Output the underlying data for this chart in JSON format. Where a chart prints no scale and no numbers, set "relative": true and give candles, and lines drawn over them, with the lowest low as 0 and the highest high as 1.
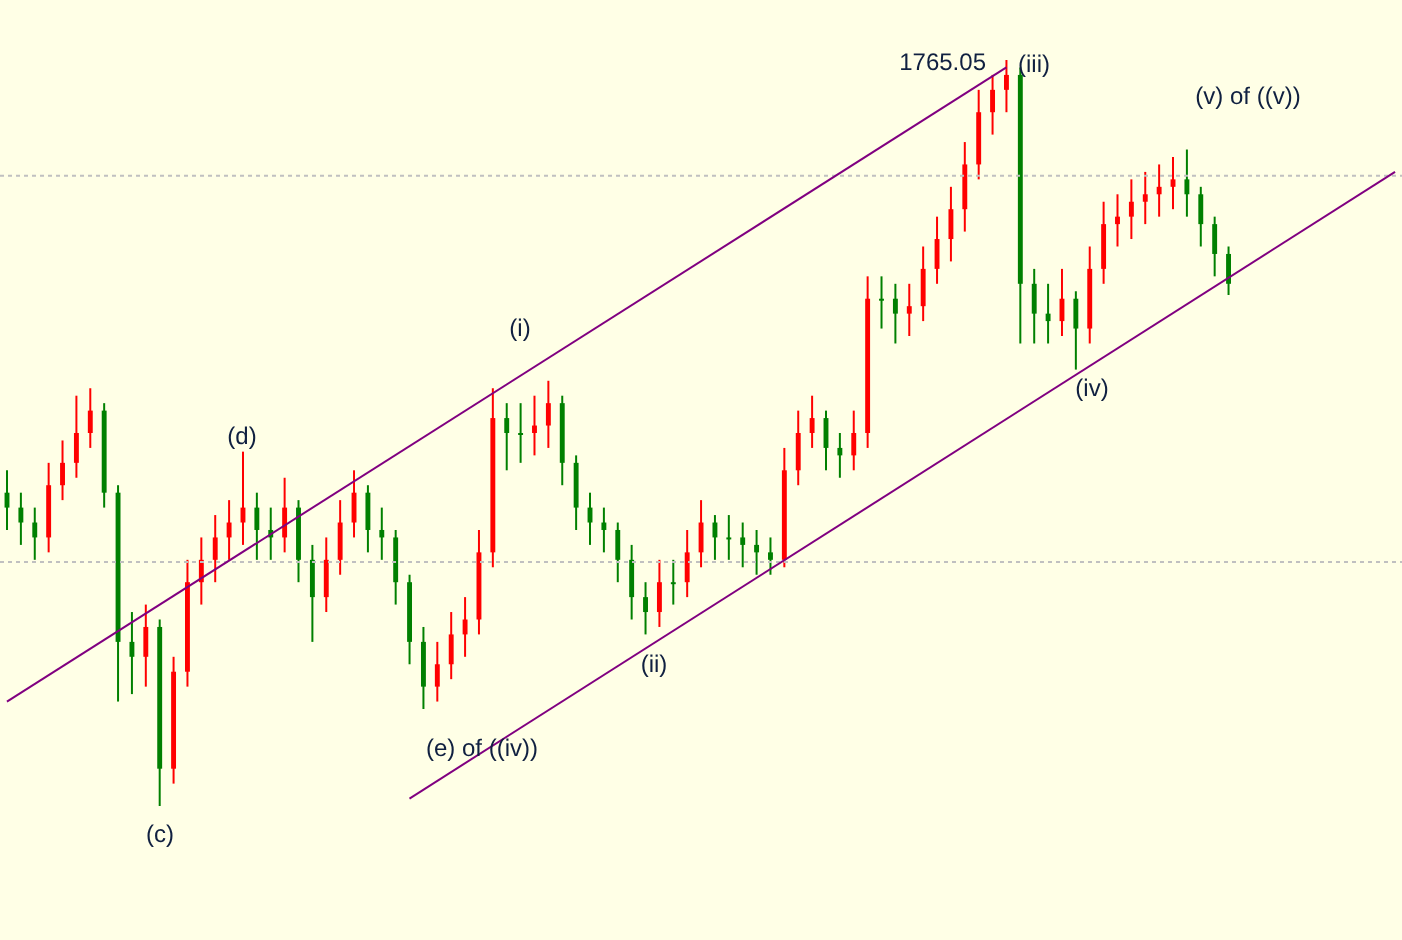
{
  "chart_data": {
    "type": "candlestick",
    "relative": true,
    "categories": [
      null,
      null,
      null,
      null,
      null,
      null,
      null,
      null,
      null,
      null,
      null,
      null,
      null,
      null,
      null,
      null,
      null,
      null,
      null,
      null,
      null,
      null,
      null,
      null,
      null,
      null,
      null,
      null,
      null,
      null,
      null,
      null,
      null,
      null,
      null,
      null,
      null,
      null,
      null,
      null,
      null,
      null,
      null,
      null,
      null,
      null,
      null,
      null,
      null,
      null,
      null,
      null,
      null,
      null,
      null,
      null,
      null,
      null,
      null,
      null,
      null,
      null,
      null,
      null,
      null,
      null,
      null,
      null,
      null,
      null,
      null,
      null,
      null,
      null,
      null,
      null,
      null,
      null,
      null,
      null,
      null,
      null,
      null,
      null,
      null,
      null,
      null,
      null,
      null,
      null,
      null,
      null,
      null,
      null,
      null,
      null,
      null,
      null,
      null,
      null,
      null
    ],
    "ohlc": [
      [
        0.42,
        0.45,
        0.37,
        0.4
      ],
      [
        0.4,
        0.42,
        0.35,
        0.38
      ],
      [
        0.38,
        0.4,
        0.33,
        0.36
      ],
      [
        0.36,
        0.46,
        0.34,
        0.43
      ],
      [
        0.43,
        0.49,
        0.41,
        0.46
      ],
      [
        0.46,
        0.55,
        0.44,
        0.5
      ],
      [
        0.5,
        0.56,
        0.48,
        0.53
      ],
      [
        0.53,
        0.54,
        0.4,
        0.42
      ],
      [
        0.42,
        0.43,
        0.14,
        0.22
      ],
      [
        0.22,
        0.26,
        0.15,
        0.2
      ],
      [
        0.2,
        0.27,
        0.16,
        0.24
      ],
      [
        0.24,
        0.25,
        0.0,
        0.05
      ],
      [
        0.05,
        0.2,
        0.03,
        0.18
      ],
      [
        0.18,
        0.33,
        0.16,
        0.3
      ],
      [
        0.3,
        0.36,
        0.27,
        0.33
      ],
      [
        0.33,
        0.39,
        0.3,
        0.36
      ],
      [
        0.36,
        0.41,
        0.33,
        0.38
      ],
      [
        0.38,
        0.475,
        0.35,
        0.4
      ],
      [
        0.4,
        0.42,
        0.33,
        0.37
      ],
      [
        0.37,
        0.4,
        0.33,
        0.36
      ],
      [
        0.36,
        0.44,
        0.34,
        0.4
      ],
      [
        0.4,
        0.41,
        0.3,
        0.33
      ],
      [
        0.33,
        0.35,
        0.22,
        0.28
      ],
      [
        0.28,
        0.36,
        0.26,
        0.33
      ],
      [
        0.33,
        0.41,
        0.31,
        0.38
      ],
      [
        0.38,
        0.45,
        0.36,
        0.42
      ],
      [
        0.42,
        0.43,
        0.34,
        0.37
      ],
      [
        0.37,
        0.4,
        0.33,
        0.36
      ],
      [
        0.36,
        0.37,
        0.27,
        0.3
      ],
      [
        0.3,
        0.31,
        0.19,
        0.22
      ],
      [
        0.22,
        0.24,
        0.13,
        0.16
      ],
      [
        0.16,
        0.22,
        0.14,
        0.19
      ],
      [
        0.19,
        0.26,
        0.17,
        0.23
      ],
      [
        0.23,
        0.28,
        0.2,
        0.25
      ],
      [
        0.25,
        0.37,
        0.23,
        0.34
      ],
      [
        0.34,
        0.56,
        0.32,
        0.52
      ],
      [
        0.52,
        0.54,
        0.45,
        0.5
      ],
      [
        0.5,
        0.54,
        0.46,
        0.5
      ],
      [
        0.5,
        0.55,
        0.47,
        0.51
      ],
      [
        0.51,
        0.57,
        0.48,
        0.54
      ],
      [
        0.54,
        0.55,
        0.43,
        0.46
      ],
      [
        0.46,
        0.47,
        0.37,
        0.4
      ],
      [
        0.4,
        0.42,
        0.35,
        0.38
      ],
      [
        0.38,
        0.4,
        0.34,
        0.37
      ],
      [
        0.37,
        0.38,
        0.3,
        0.33
      ],
      [
        0.33,
        0.35,
        0.25,
        0.28
      ],
      [
        0.28,
        0.3,
        0.23,
        0.26
      ],
      [
        0.26,
        0.33,
        0.24,
        0.3
      ],
      [
        0.3,
        0.33,
        0.27,
        0.3
      ],
      [
        0.3,
        0.37,
        0.28,
        0.34
      ],
      [
        0.34,
        0.41,
        0.32,
        0.38
      ],
      [
        0.38,
        0.39,
        0.33,
        0.36
      ],
      [
        0.36,
        0.39,
        0.33,
        0.36
      ],
      [
        0.36,
        0.38,
        0.32,
        0.35
      ],
      [
        0.35,
        0.37,
        0.31,
        0.34
      ],
      [
        0.34,
        0.36,
        0.31,
        0.33
      ],
      [
        0.33,
        0.48,
        0.32,
        0.45
      ],
      [
        0.45,
        0.53,
        0.43,
        0.5
      ],
      [
        0.5,
        0.55,
        0.48,
        0.52
      ],
      [
        0.52,
        0.53,
        0.45,
        0.48
      ],
      [
        0.48,
        0.5,
        0.44,
        0.47
      ],
      [
        0.47,
        0.53,
        0.45,
        0.5
      ],
      [
        0.5,
        0.71,
        0.48,
        0.68
      ],
      [
        0.68,
        0.71,
        0.64,
        0.68
      ],
      [
        0.68,
        0.7,
        0.62,
        0.66
      ],
      [
        0.66,
        0.7,
        0.63,
        0.67
      ],
      [
        0.67,
        0.75,
        0.65,
        0.72
      ],
      [
        0.72,
        0.79,
        0.7,
        0.76
      ],
      [
        0.76,
        0.83,
        0.73,
        0.8
      ],
      [
        0.8,
        0.89,
        0.77,
        0.86
      ],
      [
        0.86,
        0.96,
        0.84,
        0.93
      ],
      [
        0.93,
        0.98,
        0.9,
        0.96
      ],
      [
        0.96,
        1.0,
        0.93,
        0.98
      ],
      [
        0.98,
        0.99,
        0.62,
        0.7
      ],
      [
        0.7,
        0.72,
        0.62,
        0.66
      ],
      [
        0.66,
        0.7,
        0.62,
        0.65
      ],
      [
        0.65,
        0.72,
        0.63,
        0.68
      ],
      [
        0.68,
        0.69,
        0.585,
        0.64
      ],
      [
        0.64,
        0.75,
        0.62,
        0.72
      ],
      [
        0.72,
        0.81,
        0.7,
        0.78
      ],
      [
        0.78,
        0.82,
        0.75,
        0.79
      ],
      [
        0.79,
        0.84,
        0.76,
        0.81
      ],
      [
        0.81,
        0.85,
        0.78,
        0.82
      ],
      [
        0.82,
        0.86,
        0.79,
        0.83
      ],
      [
        0.83,
        0.87,
        0.8,
        0.84
      ],
      [
        0.84,
        0.88,
        0.79,
        0.82
      ],
      [
        0.82,
        0.83,
        0.75,
        0.78
      ],
      [
        0.78,
        0.79,
        0.71,
        0.74
      ],
      [
        0.74,
        0.75,
        0.685,
        0.7
      ],
      null,
      null,
      null,
      null,
      null,
      null,
      null,
      null,
      null,
      null,
      null,
      null
    ],
    "colors": [
      "#008000",
      "#008000",
      "#008000",
      "#ff0000",
      "#ff0000",
      "#ff0000",
      "#ff0000",
      "#008000",
      "#008000",
      "#008000",
      "#ff0000",
      "#008000",
      "#ff0000",
      "#ff0000",
      "#ff0000",
      "#ff0000",
      "#ff0000",
      "#ff0000",
      "#008000",
      "#008000",
      "#ff0000",
      "#008000",
      "#008000",
      "#ff0000",
      "#ff0000",
      "#ff0000",
      "#008000",
      "#008000",
      "#008000",
      "#008000",
      "#008000",
      "#ff0000",
      "#ff0000",
      "#ff0000",
      "#ff0000",
      "#ff0000",
      "#008000",
      "#008000",
      "#ff0000",
      "#ff0000",
      "#008000",
      "#008000",
      "#008000",
      "#008000",
      "#008000",
      "#008000",
      "#008000",
      "#ff0000",
      "#008000",
      "#ff0000",
      "#ff0000",
      "#008000",
      "#008000",
      "#008000",
      "#008000",
      "#008000",
      "#ff0000",
      "#ff0000",
      "#ff0000",
      "#008000",
      "#008000",
      "#ff0000",
      "#ff0000",
      "#008000",
      "#008000",
      "#ff0000",
      "#ff0000",
      "#ff0000",
      "#ff0000",
      "#ff0000",
      "#ff0000",
      "#ff0000",
      "#ff0000",
      "#008000",
      "#008000",
      "#008000",
      "#ff0000",
      "#008000",
      "#ff0000",
      "#ff0000",
      "#ff0000",
      "#ff0000",
      "#ff0000",
      "#ff0000",
      "#ff0000",
      "#008000",
      "#008000",
      "#008000",
      "#008000",
      null,
      null,
      null,
      null,
      null,
      null,
      null,
      null,
      null,
      null,
      null,
      null
    ],
    "series": [
      {
        "type": "line",
        "color": "#800080",
        "values": [
          0.14,
          null,
          null,
          null,
          null,
          null,
          null,
          null,
          null,
          null,
          null,
          null,
          null,
          null,
          null,
          null,
          null,
          null,
          null,
          null,
          null,
          null,
          null,
          null,
          null,
          null,
          null,
          null,
          null,
          null,
          null,
          null,
          null,
          null,
          null,
          null,
          null,
          null,
          null,
          null,
          null,
          null,
          null,
          null,
          null,
          null,
          null,
          null,
          null,
          null,
          null,
          null,
          null,
          null,
          null,
          null,
          null,
          null,
          null,
          null,
          null,
          null,
          null,
          null,
          null,
          null,
          null,
          null,
          null,
          null,
          null,
          null,
          0.99,
          null,
          null,
          null,
          null,
          null,
          null,
          null,
          null,
          null,
          null,
          null,
          null,
          null,
          null,
          null,
          null,
          null,
          null,
          null,
          null,
          null,
          null,
          null,
          null,
          null,
          null,
          null,
          null
        ]
      },
      {
        "type": "line",
        "color": "#800080",
        "values": [
          null,
          null,
          null,
          null,
          null,
          null,
          null,
          null,
          null,
          null,
          null,
          null,
          null,
          null,
          null,
          null,
          null,
          null,
          null,
          null,
          null,
          null,
          null,
          null,
          null,
          null,
          null,
          null,
          null,
          0.01,
          null,
          null,
          null,
          null,
          null,
          null,
          null,
          null,
          null,
          null,
          null,
          null,
          null,
          null,
          null,
          null,
          null,
          null,
          null,
          null,
          null,
          null,
          null,
          null,
          null,
          null,
          null,
          null,
          null,
          null,
          null,
          null,
          null,
          null,
          null,
          null,
          null,
          null,
          null,
          null,
          null,
          null,
          null,
          null,
          null,
          null,
          null,
          null,
          null,
          null,
          null,
          null,
          null,
          null,
          null,
          null,
          null,
          null,
          null,
          null,
          null,
          null,
          null,
          null,
          null,
          null,
          null,
          null,
          null,
          null,
          0.85
        ]
      }
    ],
    "ref_lines": [
      {
        "axis": "y",
        "value": 0.845,
        "color": "#c0c0c0",
        "line_style": "dotted"
      },
      {
        "axis": "y",
        "value": 0.327,
        "color": "#c0c0c0",
        "line_style": "dotted"
      }
    ],
    "annotations": [
      "1765.05",
      "(iii)",
      "(v) of ((v))",
      "(i)",
      "(d)",
      "(iv)",
      "(c)",
      "(e) of ((iv))",
      "(ii)"
    ]
  }
}
